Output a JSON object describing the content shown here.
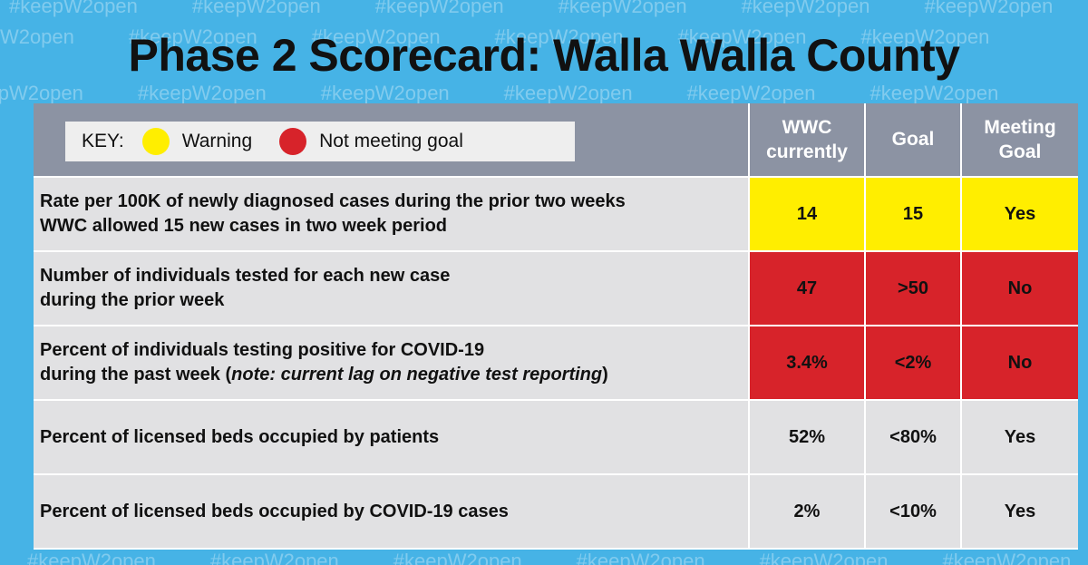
{
  "background_tag": "#keepW2open",
  "title": "Phase 2 Scorecard: Walla Walla County",
  "key": {
    "label": "KEY:",
    "warning": "Warning",
    "not_meeting": "Not meeting goal"
  },
  "columns": {
    "current": "WWC currently",
    "goal": "Goal",
    "meeting": "Meeting Goal"
  },
  "colors": {
    "warning": "#ffee00",
    "not_meeting": "#d7232a",
    "neutral": "#e1e1e3"
  },
  "rows": [
    {
      "line1": "Rate per 100K of newly diagnosed cases during the prior two weeks",
      "line2": "WWC allowed 15 new cases in two week period",
      "current": "14",
      "goal": "15",
      "meeting": "Yes",
      "status": "warning"
    },
    {
      "line1": "Number of individuals tested for each new case",
      "line2": "during the prior week",
      "current": "47",
      "goal": ">50",
      "meeting": "No",
      "status": "not_meeting"
    },
    {
      "line1": "Percent of individuals testing positive for COVID-19",
      "line2_prefix": "during the past week (",
      "line2_note": "note: current lag on negative test reporting",
      "line2_suffix": ")",
      "current": "3.4%",
      "goal": "<2%",
      "meeting": "No",
      "status": "not_meeting"
    },
    {
      "line1": "Percent of licensed beds occupied by patients",
      "current": "52%",
      "goal": "<80%",
      "meeting": "Yes",
      "status": "neutral"
    },
    {
      "line1": "Percent of licensed beds occupied by COVID-19 cases",
      "current": "2%",
      "goal": "<10%",
      "meeting": "Yes",
      "status": "neutral"
    }
  ]
}
